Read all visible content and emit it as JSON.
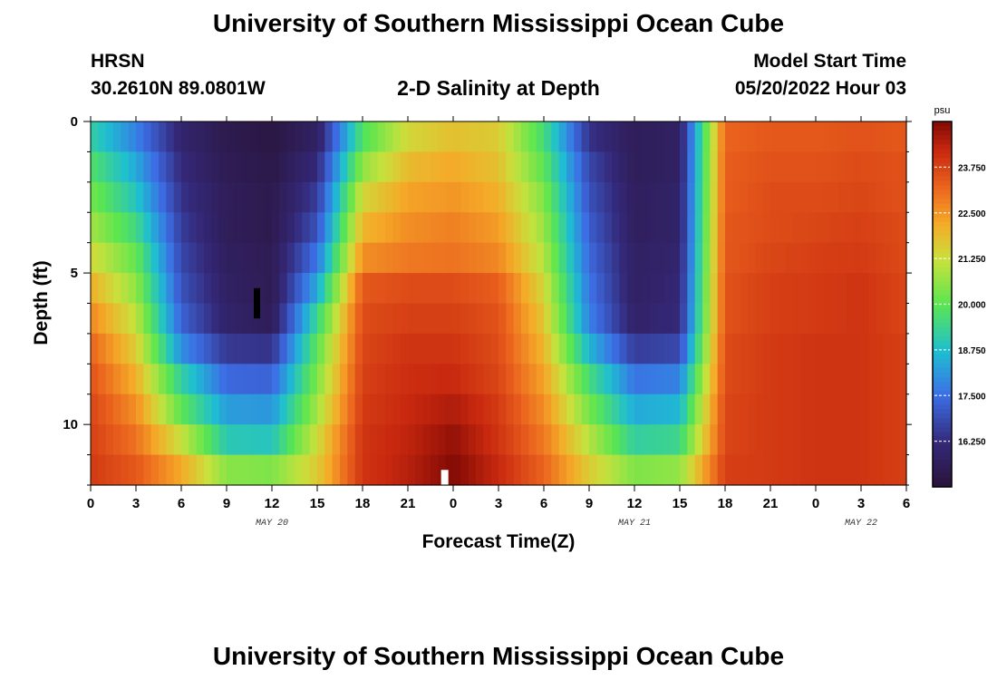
{
  "header": {
    "title": "University of Southern Mississippi Ocean Cube",
    "station": "HRSN",
    "coords": "30.2610N  89.0801W",
    "plot_title": "2-D Salinity at Depth",
    "model_label": "Model Start Time",
    "model_time": "05/20/2022 Hour 03"
  },
  "footer": {
    "title": "University of Southern Mississippi Ocean Cube"
  },
  "chart_data": {
    "type": "heatmap",
    "title": "2-D Salinity at Depth",
    "xlabel": "Forecast Time(Z)",
    "ylabel": "Depth (ft)",
    "x_ticks": [
      "0",
      "3",
      "6",
      "9",
      "12",
      "15",
      "18",
      "21",
      "0",
      "3",
      "6",
      "9",
      "12",
      "15",
      "18",
      "21",
      "0",
      "3",
      "6"
    ],
    "x_range_hours": [
      0,
      54
    ],
    "date_labels": [
      {
        "label": "MAY 20",
        "hour": 12
      },
      {
        "label": "MAY 21",
        "hour": 36
      },
      {
        "label": "MAY 22",
        "hour": 51
      }
    ],
    "y_ticks": [
      "0",
      "5",
      "10"
    ],
    "y_range_ft": [
      0,
      12
    ],
    "colorbar": {
      "unit": "psu",
      "min": 15.0,
      "max": 25.0,
      "ticks": [
        "23.750",
        "22.500",
        "21.250",
        "20.000",
        "18.750",
        "17.500",
        "16.250"
      ],
      "tick_values": [
        23.75,
        22.5,
        21.25,
        20.0,
        18.75,
        17.5,
        16.25
      ]
    },
    "row_depths_ft": [
      0.5,
      1.5,
      2.5,
      3.5,
      4.5,
      5.5,
      6.5,
      7.5,
      8.5,
      9.5,
      10.5,
      11.5
    ],
    "col_hours": [
      0,
      3,
      6,
      9,
      12,
      15,
      18,
      21,
      24,
      27,
      30,
      33,
      36,
      39,
      42,
      45,
      48,
      51,
      54
    ],
    "salinity": [
      [
        19.2,
        17.8,
        16.0,
        15.4,
        15.2,
        15.8,
        19.8,
        21.4,
        21.8,
        21.6,
        19.6,
        16.4,
        15.6,
        15.8,
        23.2,
        23.4,
        23.4,
        23.5,
        23.4
      ],
      [
        19.8,
        18.4,
        16.2,
        15.5,
        15.3,
        16.2,
        20.6,
        21.9,
        22.2,
        21.8,
        20.0,
        16.8,
        15.6,
        15.8,
        23.3,
        23.5,
        23.5,
        23.6,
        23.5
      ],
      [
        20.3,
        18.9,
        16.4,
        15.6,
        15.4,
        16.6,
        21.4,
        22.3,
        22.5,
        22.1,
        20.4,
        17.0,
        15.7,
        15.9,
        23.3,
        23.6,
        23.6,
        23.7,
        23.5
      ],
      [
        20.8,
        19.5,
        16.6,
        15.6,
        15.4,
        17.0,
        22.0,
        22.6,
        22.8,
        22.4,
        20.7,
        17.2,
        15.7,
        15.9,
        23.4,
        23.6,
        23.7,
        23.8,
        23.6
      ],
      [
        21.4,
        20.1,
        16.8,
        15.7,
        15.5,
        17.6,
        22.6,
        22.9,
        23.0,
        22.7,
        21.0,
        17.4,
        15.8,
        16.0,
        23.4,
        23.7,
        23.8,
        23.9,
        23.6
      ],
      [
        22.1,
        20.6,
        17.0,
        15.8,
        15.5,
        18.4,
        23.4,
        23.6,
        23.6,
        23.3,
        21.4,
        17.6,
        15.8,
        16.1,
        23.5,
        23.8,
        23.9,
        24.0,
        23.7
      ],
      [
        22.7,
        21.1,
        17.3,
        15.9,
        15.6,
        19.4,
        23.6,
        23.8,
        23.8,
        23.5,
        21.7,
        17.8,
        15.9,
        16.2,
        23.5,
        23.8,
        23.9,
        24.0,
        23.7
      ],
      [
        23.2,
        21.6,
        18.0,
        16.5,
        16.4,
        20.0,
        23.7,
        24.0,
        24.0,
        23.6,
        22.0,
        18.6,
        16.6,
        16.8,
        23.6,
        23.9,
        24.0,
        24.0,
        23.8
      ],
      [
        23.5,
        22.1,
        19.2,
        17.4,
        17.3,
        20.4,
        23.8,
        24.1,
        24.2,
        23.7,
        22.3,
        19.6,
        17.6,
        17.8,
        23.6,
        23.9,
        24.0,
        24.0,
        23.8
      ],
      [
        23.7,
        22.6,
        20.0,
        18.2,
        18.1,
        20.8,
        23.9,
        24.2,
        24.5,
        23.9,
        22.6,
        20.3,
        18.4,
        18.6,
        23.7,
        23.9,
        24.0,
        24.0,
        23.8
      ],
      [
        23.8,
        23.0,
        21.2,
        19.0,
        18.9,
        21.3,
        24.0,
        24.3,
        24.8,
        24.0,
        22.9,
        21.0,
        19.2,
        19.4,
        23.7,
        23.9,
        24.0,
        24.0,
        23.8
      ],
      [
        23.9,
        23.4,
        22.2,
        20.5,
        20.4,
        21.6,
        24.0,
        24.4,
        25.0,
        24.2,
        23.2,
        21.6,
        20.4,
        20.6,
        23.8,
        23.9,
        24.0,
        24.0,
        23.8
      ]
    ]
  }
}
